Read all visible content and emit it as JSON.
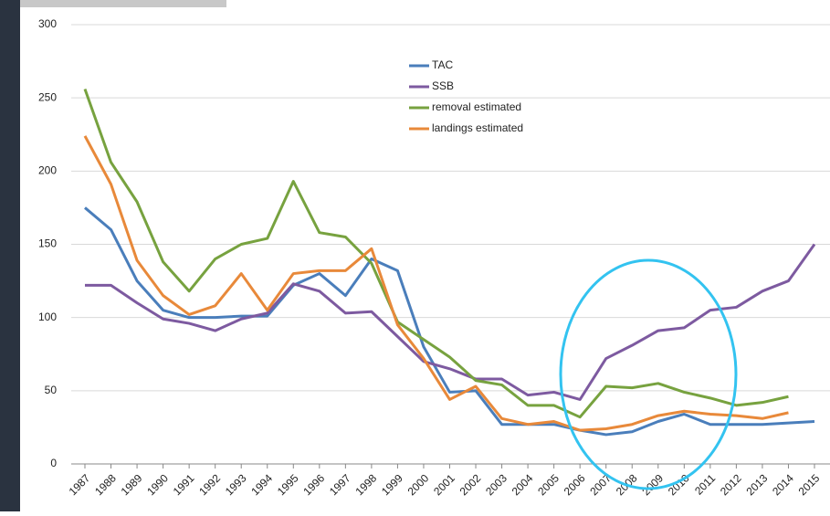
{
  "chart_data": {
    "type": "line",
    "categories": [
      "1987",
      "1988",
      "1989",
      "1990",
      "1991",
      "1992",
      "1993",
      "1994",
      "1995",
      "1996",
      "1997",
      "1998",
      "1999",
      "2000",
      "2001",
      "2002",
      "2003",
      "2004",
      "2005",
      "2006",
      "2007",
      "2008",
      "2009",
      "2010",
      "2011",
      "2012",
      "2013",
      "2014",
      "2015"
    ],
    "series": [
      {
        "name": "TAC",
        "color": "#4a7ebb",
        "values": [
          175,
          160,
          125,
          105,
          100,
          100,
          101,
          101,
          122,
          130,
          115,
          140,
          132,
          80,
          49,
          50,
          27,
          27,
          27,
          23,
          20,
          22,
          29,
          34,
          27,
          27,
          27,
          28,
          29
        ]
      },
      {
        "name": "SSB",
        "color": "#7d5aa0",
        "values": [
          122,
          122,
          110,
          99,
          96,
          91,
          99,
          103,
          123,
          118,
          103,
          104,
          87,
          70,
          65,
          58,
          58,
          47,
          49,
          44,
          72,
          81,
          91,
          93,
          105,
          107,
          118,
          125,
          150
        ]
      },
      {
        "name": "removal estimated",
        "color": "#77a23f",
        "values": [
          256,
          206,
          179,
          138,
          118,
          140,
          150,
          154,
          193,
          158,
          155,
          137,
          97,
          85,
          73,
          57,
          54,
          40,
          40,
          32,
          53,
          52,
          55,
          49,
          45,
          40,
          42,
          46,
          null
        ]
      },
      {
        "name": "landings estimated",
        "color": "#e8893a",
        "values": [
          224,
          191,
          139,
          115,
          102,
          108,
          130,
          105,
          130,
          132,
          132,
          147,
          95,
          72,
          44,
          53,
          31,
          27,
          29,
          23,
          24,
          27,
          33,
          36,
          34,
          33,
          31,
          35,
          null
        ]
      }
    ],
    "ylim": [
      0,
      300
    ],
    "yticks": [
      0,
      50,
      100,
      150,
      200,
      250,
      300
    ],
    "grid": true
  }
}
